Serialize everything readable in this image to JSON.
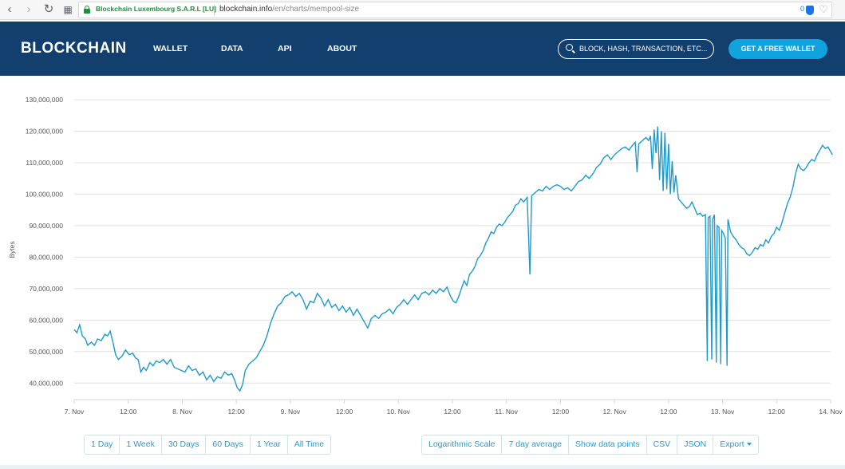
{
  "browser": {
    "site_identity": "Blockchain Luxembourg S.A.R.L [LU]",
    "url_domain": "blockchain.info",
    "url_path": "/en/charts/mempool-size",
    "extension_count": "0"
  },
  "header": {
    "logo": "BLOCKCHAIN",
    "nav": [
      "WALLET",
      "DATA",
      "API",
      "ABOUT"
    ],
    "search_placeholder": "BLOCK, HASH, TRANSACTION, ETC...",
    "cta_label": "GET A FREE WALLET",
    "colors": {
      "header_bg": "#123f6d",
      "cta_bg": "#11a3dd"
    }
  },
  "range_buttons": [
    "1 Day",
    "1 Week",
    "30 Days",
    "60 Days",
    "1 Year",
    "All Time"
  ],
  "option_buttons": [
    "Logarithmic Scale",
    "7 day average",
    "Show data points",
    "CSV",
    "JSON",
    "Export"
  ],
  "chart_data": {
    "type": "line",
    "title": "",
    "xlabel": "",
    "ylabel": "Bytes",
    "color": "#1e9acb",
    "grid": true,
    "ylim": [
      35000000,
      130000000
    ],
    "yticks": [
      {
        "v": 40000000,
        "label": "40,000,000"
      },
      {
        "v": 50000000,
        "label": "50,000,000"
      },
      {
        "v": 60000000,
        "label": "60,000,000"
      },
      {
        "v": 70000000,
        "label": "70,000,000"
      },
      {
        "v": 80000000,
        "label": "80,000,000"
      },
      {
        "v": 90000000,
        "label": "90,000,000"
      },
      {
        "v": 100000000,
        "label": "100,000,000"
      },
      {
        "v": 110000000,
        "label": "110,000,000"
      },
      {
        "v": 120000000,
        "label": "120,000,000"
      },
      {
        "v": 130000000,
        "label": "130,000,000"
      }
    ],
    "xlim": [
      "Nov 7 00:00",
      "Nov 14 00:00"
    ],
    "xticks": [
      {
        "t": 0,
        "label": "7. Nov"
      },
      {
        "t": 12,
        "label": "12:00"
      },
      {
        "t": 24,
        "label": "8. Nov"
      },
      {
        "t": 36,
        "label": "12:00"
      },
      {
        "t": 48,
        "label": "9. Nov"
      },
      {
        "t": 60,
        "label": "12:00"
      },
      {
        "t": 72,
        "label": "10. Nov"
      },
      {
        "t": 84,
        "label": "12:00"
      },
      {
        "t": 96,
        "label": "11. Nov"
      },
      {
        "t": 108,
        "label": "12:00"
      },
      {
        "t": 120,
        "label": "12. Nov"
      },
      {
        "t": 132,
        "label": "12:00"
      },
      {
        "t": 144,
        "label": "13. Nov"
      },
      {
        "t": 156,
        "label": "12:00"
      },
      {
        "t": 168,
        "label": "14. Nov"
      }
    ],
    "series": [
      {
        "points": [
          [
            0.0,
            57000000
          ],
          [
            0.6,
            56000000
          ],
          [
            1.2,
            58500000
          ],
          [
            1.8,
            55000000
          ],
          [
            2.5,
            54000000
          ],
          [
            3.0,
            52000000
          ],
          [
            3.8,
            53000000
          ],
          [
            4.5,
            52000000
          ],
          [
            5.2,
            54000000
          ],
          [
            6.0,
            53500000
          ],
          [
            6.8,
            55500000
          ],
          [
            7.4,
            55000000
          ],
          [
            8.0,
            56500000
          ],
          [
            8.6,
            53000000
          ],
          [
            9.2,
            49000000
          ],
          [
            9.8,
            47500000
          ],
          [
            10.6,
            48500000
          ],
          [
            11.4,
            50500000
          ],
          [
            12.2,
            49000000
          ],
          [
            13.0,
            49500000
          ],
          [
            13.6,
            48000000
          ],
          [
            14.2,
            47500000
          ],
          [
            14.8,
            43500000
          ],
          [
            15.4,
            45000000
          ],
          [
            16.0,
            44000000
          ],
          [
            16.8,
            46500000
          ],
          [
            17.5,
            45500000
          ],
          [
            18.2,
            47000000
          ],
          [
            19.0,
            46500000
          ],
          [
            19.8,
            47500000
          ],
          [
            20.6,
            46000000
          ],
          [
            21.4,
            47500000
          ],
          [
            22.2,
            45000000
          ],
          [
            23.0,
            44500000
          ],
          [
            23.8,
            44000000
          ],
          [
            24.6,
            43500000
          ],
          [
            25.4,
            45500000
          ],
          [
            26.2,
            44000000
          ],
          [
            27.0,
            44500000
          ],
          [
            27.8,
            42500000
          ],
          [
            28.6,
            43500000
          ],
          [
            29.4,
            41000000
          ],
          [
            30.2,
            42500000
          ],
          [
            31.0,
            40500000
          ],
          [
            31.8,
            42000000
          ],
          [
            32.6,
            41500000
          ],
          [
            33.4,
            43500000
          ],
          [
            34.2,
            42500000
          ],
          [
            35.0,
            43000000
          ],
          [
            35.6,
            41000000
          ],
          [
            36.2,
            38500000
          ],
          [
            36.8,
            37500000
          ],
          [
            37.4,
            39500000
          ],
          [
            38.0,
            44000000
          ],
          [
            38.8,
            46000000
          ],
          [
            39.6,
            47000000
          ],
          [
            40.4,
            48000000
          ],
          [
            41.2,
            50000000
          ],
          [
            42.0,
            52000000
          ],
          [
            42.8,
            55000000
          ],
          [
            43.6,
            59000000
          ],
          [
            44.4,
            62000000
          ],
          [
            45.2,
            64500000
          ],
          [
            46.0,
            65500000
          ],
          [
            46.8,
            67500000
          ],
          [
            47.6,
            68000000
          ],
          [
            48.4,
            69000000
          ],
          [
            49.2,
            67500000
          ],
          [
            50.0,
            68500000
          ],
          [
            50.8,
            66500000
          ],
          [
            51.6,
            63500000
          ],
          [
            52.4,
            66000000
          ],
          [
            53.2,
            65500000
          ],
          [
            54.0,
            68500000
          ],
          [
            54.8,
            67000000
          ],
          [
            55.6,
            64500000
          ],
          [
            56.4,
            66500000
          ],
          [
            57.2,
            64000000
          ],
          [
            58.0,
            65000000
          ],
          [
            58.8,
            63000000
          ],
          [
            59.6,
            64500000
          ],
          [
            60.4,
            62500000
          ],
          [
            61.2,
            64000000
          ],
          [
            62.0,
            61500000
          ],
          [
            62.8,
            63500000
          ],
          [
            63.6,
            61500000
          ],
          [
            64.4,
            59500000
          ],
          [
            65.2,
            57500000
          ],
          [
            66.0,
            60500000
          ],
          [
            66.8,
            61500000
          ],
          [
            67.6,
            60500000
          ],
          [
            68.4,
            62000000
          ],
          [
            69.2,
            62500000
          ],
          [
            70.0,
            63500000
          ],
          [
            70.8,
            62000000
          ],
          [
            71.6,
            64000000
          ],
          [
            72.4,
            65000000
          ],
          [
            73.2,
            66500000
          ],
          [
            74.0,
            65000000
          ],
          [
            74.8,
            66500000
          ],
          [
            75.6,
            68000000
          ],
          [
            76.4,
            66500000
          ],
          [
            77.2,
            68500000
          ],
          [
            78.0,
            69000000
          ],
          [
            78.8,
            68000000
          ],
          [
            79.6,
            69500000
          ],
          [
            80.4,
            68500000
          ],
          [
            81.2,
            70000000
          ],
          [
            82.0,
            69000000
          ],
          [
            82.8,
            70500000
          ],
          [
            83.6,
            67500000
          ],
          [
            84.2,
            66000000
          ],
          [
            84.8,
            65500000
          ],
          [
            85.4,
            67500000
          ],
          [
            86.0,
            70000000
          ],
          [
            86.6,
            72500000
          ],
          [
            87.2,
            71000000
          ],
          [
            87.8,
            74500000
          ],
          [
            88.4,
            75500000
          ],
          [
            89.0,
            77000000
          ],
          [
            89.6,
            79500000
          ],
          [
            90.2,
            80500000
          ],
          [
            90.8,
            82000000
          ],
          [
            91.4,
            84500000
          ],
          [
            92.0,
            86000000
          ],
          [
            92.6,
            88000000
          ],
          [
            93.2,
            87500000
          ],
          [
            93.8,
            89500000
          ],
          [
            94.4,
            90500000
          ],
          [
            95.0,
            90000000
          ],
          [
            95.6,
            91000000
          ],
          [
            96.2,
            92500000
          ],
          [
            96.8,
            93500000
          ],
          [
            97.4,
            94500000
          ],
          [
            98.0,
            96500000
          ],
          [
            98.6,
            97000000
          ],
          [
            99.2,
            98500000
          ],
          [
            99.8,
            97500000
          ],
          [
            100.6,
            99000000
          ],
          [
            101.2,
            74500000
          ],
          [
            101.6,
            99500000
          ],
          [
            102.4,
            100500000
          ],
          [
            103.2,
            101500000
          ],
          [
            104.0,
            101000000
          ],
          [
            104.8,
            102500000
          ],
          [
            105.6,
            101500000
          ],
          [
            106.4,
            102500000
          ],
          [
            107.2,
            103000000
          ],
          [
            108.0,
            102500000
          ],
          [
            108.8,
            101500000
          ],
          [
            109.6,
            102000000
          ],
          [
            110.4,
            101000000
          ],
          [
            111.2,
            102500000
          ],
          [
            112.0,
            104000000
          ],
          [
            112.8,
            104500000
          ],
          [
            113.6,
            106000000
          ],
          [
            114.4,
            105000000
          ],
          [
            115.2,
            106500000
          ],
          [
            116.0,
            108500000
          ],
          [
            116.8,
            109500000
          ],
          [
            117.6,
            111500000
          ],
          [
            118.4,
            112500000
          ],
          [
            119.2,
            111000000
          ],
          [
            120.0,
            112500000
          ],
          [
            120.8,
            113500000
          ],
          [
            121.6,
            114500000
          ],
          [
            122.4,
            115000000
          ],
          [
            123.2,
            114000000
          ],
          [
            124.0,
            115500000
          ],
          [
            124.6,
            116500000
          ],
          [
            125.0,
            107000000
          ],
          [
            125.4,
            116000000
          ],
          [
            126.2,
            117000000
          ],
          [
            127.0,
            118000000
          ],
          [
            127.6,
            117000000
          ],
          [
            128.0,
            118500000
          ],
          [
            128.4,
            108000000
          ],
          [
            128.8,
            120500000
          ],
          [
            129.2,
            113000000
          ],
          [
            129.6,
            121500000
          ],
          [
            130.0,
            104500000
          ],
          [
            130.4,
            120000000
          ],
          [
            130.8,
            101000000
          ],
          [
            131.2,
            119500000
          ],
          [
            131.6,
            101500000
          ],
          [
            132.0,
            116000000
          ],
          [
            132.4,
            100000000
          ],
          [
            132.8,
            110500000
          ],
          [
            133.2,
            100500000
          ],
          [
            133.6,
            106000000
          ],
          [
            134.2,
            98500000
          ],
          [
            134.8,
            97500000
          ],
          [
            135.4,
            96500000
          ],
          [
            136.0,
            95500000
          ],
          [
            136.6,
            96000000
          ],
          [
            137.2,
            97500000
          ],
          [
            137.8,
            95500000
          ],
          [
            138.4,
            93500000
          ],
          [
            139.0,
            94000000
          ],
          [
            139.6,
            93000000
          ],
          [
            140.2,
            93500000
          ],
          [
            140.6,
            47000000
          ],
          [
            140.8,
            92500000
          ],
          [
            141.2,
            93000000
          ],
          [
            141.6,
            47500000
          ],
          [
            141.8,
            92000000
          ],
          [
            142.2,
            93500000
          ],
          [
            142.6,
            46500000
          ],
          [
            142.8,
            90000000
          ],
          [
            143.2,
            89500000
          ],
          [
            143.6,
            46000000
          ],
          [
            143.8,
            88500000
          ],
          [
            144.2,
            87500000
          ],
          [
            144.6,
            86000000
          ],
          [
            145.0,
            45500000
          ],
          [
            145.2,
            92000000
          ],
          [
            145.8,
            88000000
          ],
          [
            146.4,
            86500000
          ],
          [
            147.0,
            85500000
          ],
          [
            147.6,
            84000000
          ],
          [
            148.2,
            83000000
          ],
          [
            148.8,
            82500000
          ],
          [
            149.4,
            81000000
          ],
          [
            150.0,
            80500000
          ],
          [
            150.6,
            81500000
          ],
          [
            151.2,
            83000000
          ],
          [
            151.8,
            82500000
          ],
          [
            152.4,
            84000000
          ],
          [
            153.0,
            83500000
          ],
          [
            153.6,
            85500000
          ],
          [
            154.2,
            84500000
          ],
          [
            154.8,
            86500000
          ],
          [
            155.4,
            87500000
          ],
          [
            156.0,
            89500000
          ],
          [
            156.6,
            88500000
          ],
          [
            157.2,
            91000000
          ],
          [
            157.8,
            94000000
          ],
          [
            158.4,
            97000000
          ],
          [
            159.0,
            99000000
          ],
          [
            159.6,
            102000000
          ],
          [
            160.2,
            106500000
          ],
          [
            160.8,
            109500000
          ],
          [
            161.4,
            108000000
          ],
          [
            162.0,
            107500000
          ],
          [
            162.6,
            108500000
          ],
          [
            163.2,
            110000000
          ],
          [
            163.8,
            111000000
          ],
          [
            164.4,
            110500000
          ],
          [
            165.0,
            112500000
          ],
          [
            165.6,
            114000000
          ],
          [
            166.2,
            115500000
          ],
          [
            166.8,
            114500000
          ],
          [
            167.4,
            115000000
          ],
          [
            168.0,
            113500000
          ],
          [
            168.4,
            112500000
          ]
        ]
      }
    ]
  }
}
